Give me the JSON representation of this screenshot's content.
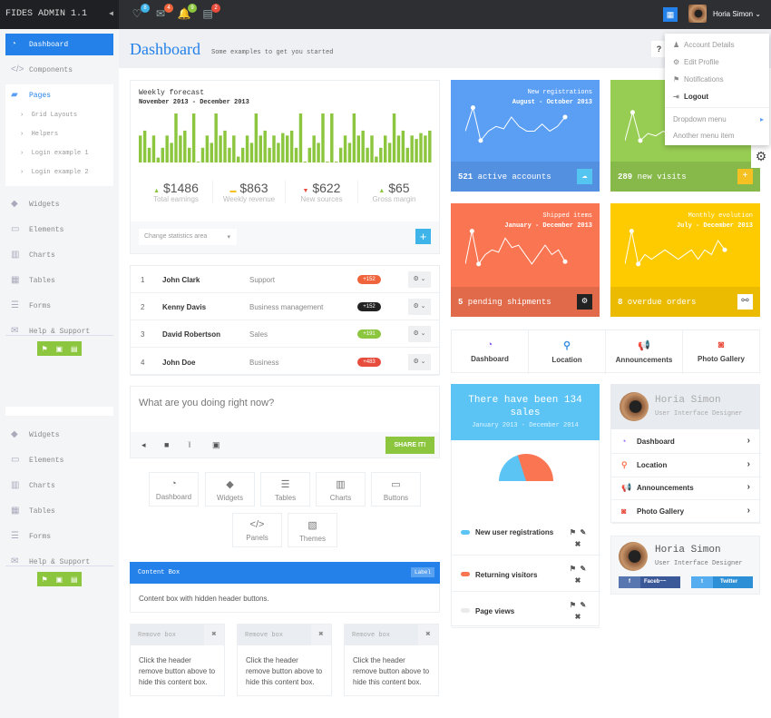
{
  "app": {
    "title": "FIDES ADMIN 1.1",
    "collapse_icon": "caret-left-icon"
  },
  "topbar": {
    "icons": [
      {
        "name": "lightbulb-icon",
        "glyph": "♡",
        "badge": "8",
        "color": "#3fb4e8"
      },
      {
        "name": "envelope-icon",
        "glyph": "✉",
        "badge": "4",
        "color": "#f0643c"
      },
      {
        "name": "bell-icon",
        "glyph": "🔔",
        "badge": "9",
        "color": "#8cc63f"
      },
      {
        "name": "inbox-icon",
        "glyph": "▤",
        "badge": "2",
        "color": "#e84c3d"
      }
    ],
    "user_name": "Horia Simon"
  },
  "user_menu": {
    "items": [
      "Account Details",
      "Edit Profile",
      "Notifications",
      "Logout"
    ],
    "sub_items": [
      "Dropdown menu",
      "Another menu item"
    ]
  },
  "sidebar": {
    "items": [
      {
        "label": "Dashboard",
        "icon": "dashboard-icon"
      },
      {
        "label": "Components",
        "icon": "code-icon"
      },
      {
        "label": "Pages",
        "icon": "folder-icon"
      }
    ],
    "pages_sub": [
      "Grid Layouts",
      "Helpers",
      "Login example 1",
      "Login example 2"
    ],
    "items2": [
      "Widgets",
      "Elements",
      "Charts",
      "Tables",
      "Forms",
      "Help & Support"
    ]
  },
  "header": {
    "title": "Dashboard",
    "subtitle": "Some examples to get you started",
    "help": "?"
  },
  "forecast": {
    "title": "Weekly forecast",
    "range": "November 2013 - December 2013",
    "bar_color": "#8cc63f",
    "stats": [
      {
        "value": "$1486",
        "label": "Total earnings",
        "trend": "up"
      },
      {
        "value": "$863",
        "label": "Weekly revenue",
        "trend": "flat"
      },
      {
        "value": "$622",
        "label": "New sources",
        "trend": "down"
      },
      {
        "value": "$65",
        "label": "Gross margin",
        "trend": "up"
      }
    ],
    "select": "Change statistics area"
  },
  "chart_data": {
    "type": "bar",
    "values": [
      5.5,
      6.5,
      3,
      5.5,
      1,
      3,
      5.5,
      4,
      10,
      5.5,
      6.5,
      3,
      10,
      0,
      3,
      5.5,
      4,
      10,
      5.5,
      6.5,
      3,
      5.5,
      1.2,
      3,
      5.5,
      4,
      10,
      5.5,
      6.5,
      3,
      5.5,
      4,
      6,
      5.5,
      6.5,
      3,
      10,
      0,
      3,
      5.5,
      4,
      10,
      0,
      10,
      0,
      3,
      5.5,
      4,
      10,
      5.5,
      6.5,
      3,
      5.5,
      1.2,
      3,
      5.5,
      4,
      10,
      5.5,
      6.5,
      3,
      5.5,
      4.8,
      6,
      5.5,
      6.5
    ]
  },
  "table": {
    "rows": [
      {
        "n": "1",
        "name": "John Clark",
        "dept": "Support",
        "badge": "+152",
        "color": "#f0643c"
      },
      {
        "n": "2",
        "name": "Kenny Davis",
        "dept": "Business management",
        "badge": "+152",
        "color": "#222"
      },
      {
        "n": "3",
        "name": "David Robertson",
        "dept": "Sales",
        "badge": "+191",
        "color": "#8cc63f"
      },
      {
        "n": "4",
        "name": "John Doe",
        "dept": "Business",
        "badge": "+483",
        "color": "#e84c3d"
      }
    ]
  },
  "status": {
    "placeholder": "What are you doing right now?",
    "share": "SHARE IT!"
  },
  "icon_buttons": [
    {
      "label": "Dashboard",
      "glyph": "◔"
    },
    {
      "label": "Widgets",
      "glyph": "◆"
    },
    {
      "label": "Tables",
      "glyph": "☰"
    },
    {
      "label": "Charts",
      "glyph": "▥"
    },
    {
      "label": "Buttons",
      "glyph": "▭"
    },
    {
      "label": "Panels",
      "glyph": "</>"
    },
    {
      "label": "Themes",
      "glyph": "▧"
    }
  ],
  "content_box": {
    "title": "Content Box",
    "label": "Label",
    "body": "Content box with hidden header buttons."
  },
  "remove_boxes": [
    {
      "title": "Remove box",
      "body": "Click the header remove button above to hide this content box."
    },
    {
      "title": "Remove box",
      "body": "Click the header remove button above to hide this content box."
    },
    {
      "title": "Remove box",
      "body": "Click the header remove button above to hide this content box."
    }
  ],
  "tiles": [
    {
      "t1": "New registrations",
      "t2": "August - October 2013",
      "footer_num": "521",
      "footer": " active accounts",
      "color": "#5b9ff5",
      "foot": "#5390e0",
      "btn": "☁",
      "btnbg": "#54c4f0",
      "spark": [
        3,
        8,
        1,
        3,
        4,
        3.5,
        6,
        4,
        3,
        3,
        4.5,
        3,
        4,
        6
      ]
    },
    {
      "t1": "",
      "t2": "",
      "footer_num": "289",
      "footer": " new visits",
      "color": "#98cd54",
      "foot": "#86b94a",
      "btn": "+",
      "btnbg": "#f5c022",
      "spark": [
        1,
        7,
        1,
        2.5,
        2,
        3,
        2,
        3,
        2.5,
        3,
        2,
        4,
        3,
        5
      ]
    },
    {
      "t1": "Shipped items",
      "t2": "January - December 2013",
      "footer_num": "5",
      "footer": " pending shipments",
      "color": "#fa7652",
      "foot": "#e06a4a",
      "btn": "⚙",
      "btnbg": "#222",
      "spark": [
        1,
        8,
        1,
        3,
        4,
        3.5,
        6.5,
        4.5,
        5,
        3,
        1,
        3,
        5,
        3,
        4,
        1.5
      ]
    },
    {
      "t1": "Monthly evolution",
      "t2": "July - December 2013",
      "footer_num": "8",
      "footer": " overdue orders",
      "color": "#fecb00",
      "foot": "#eabb00",
      "btn": "⚯",
      "btnbg": "#fff",
      "spark": [
        1,
        8,
        1,
        3,
        2,
        3,
        4,
        3,
        2,
        3,
        4,
        2,
        4,
        3,
        6,
        4
      ]
    }
  ],
  "nav4": [
    {
      "label": "Dashboard",
      "glyph": "◔",
      "color": "#8b5cf6"
    },
    {
      "label": "Location",
      "glyph": "⚲",
      "color": "#3d8fe0"
    },
    {
      "label": "Announcements",
      "glyph": "📢",
      "color": "#8cc63f"
    },
    {
      "label": "Photo Gallery",
      "glyph": "◙",
      "color": "#e84c3d"
    }
  ],
  "sales": {
    "title": "There have been 134 sales",
    "range": "January 2013 - December 2014",
    "pie": [
      {
        "label": "New user registrations",
        "value": 40,
        "color": "#5bc4f5"
      },
      {
        "label": "Returning visitors",
        "value": 60,
        "color": "#fa7652"
      },
      {
        "label": "Page views",
        "value": 0,
        "color": "#e8eaec"
      }
    ]
  },
  "profile": {
    "name": "Horia Simon",
    "role": "User Interface Designer",
    "links": [
      {
        "label": "Dashboard",
        "glyph": "◔",
        "color": "#8b5cf6"
      },
      {
        "label": "Location",
        "glyph": "⚲",
        "color": "#fa7652"
      },
      {
        "label": "Announcements",
        "glyph": "📢",
        "color": "#8cc63f"
      },
      {
        "label": "Photo Gallery",
        "glyph": "◙",
        "color": "#e84c3d"
      }
    ],
    "facebook": "Faceb~~",
    "twitter": "Twitter"
  }
}
